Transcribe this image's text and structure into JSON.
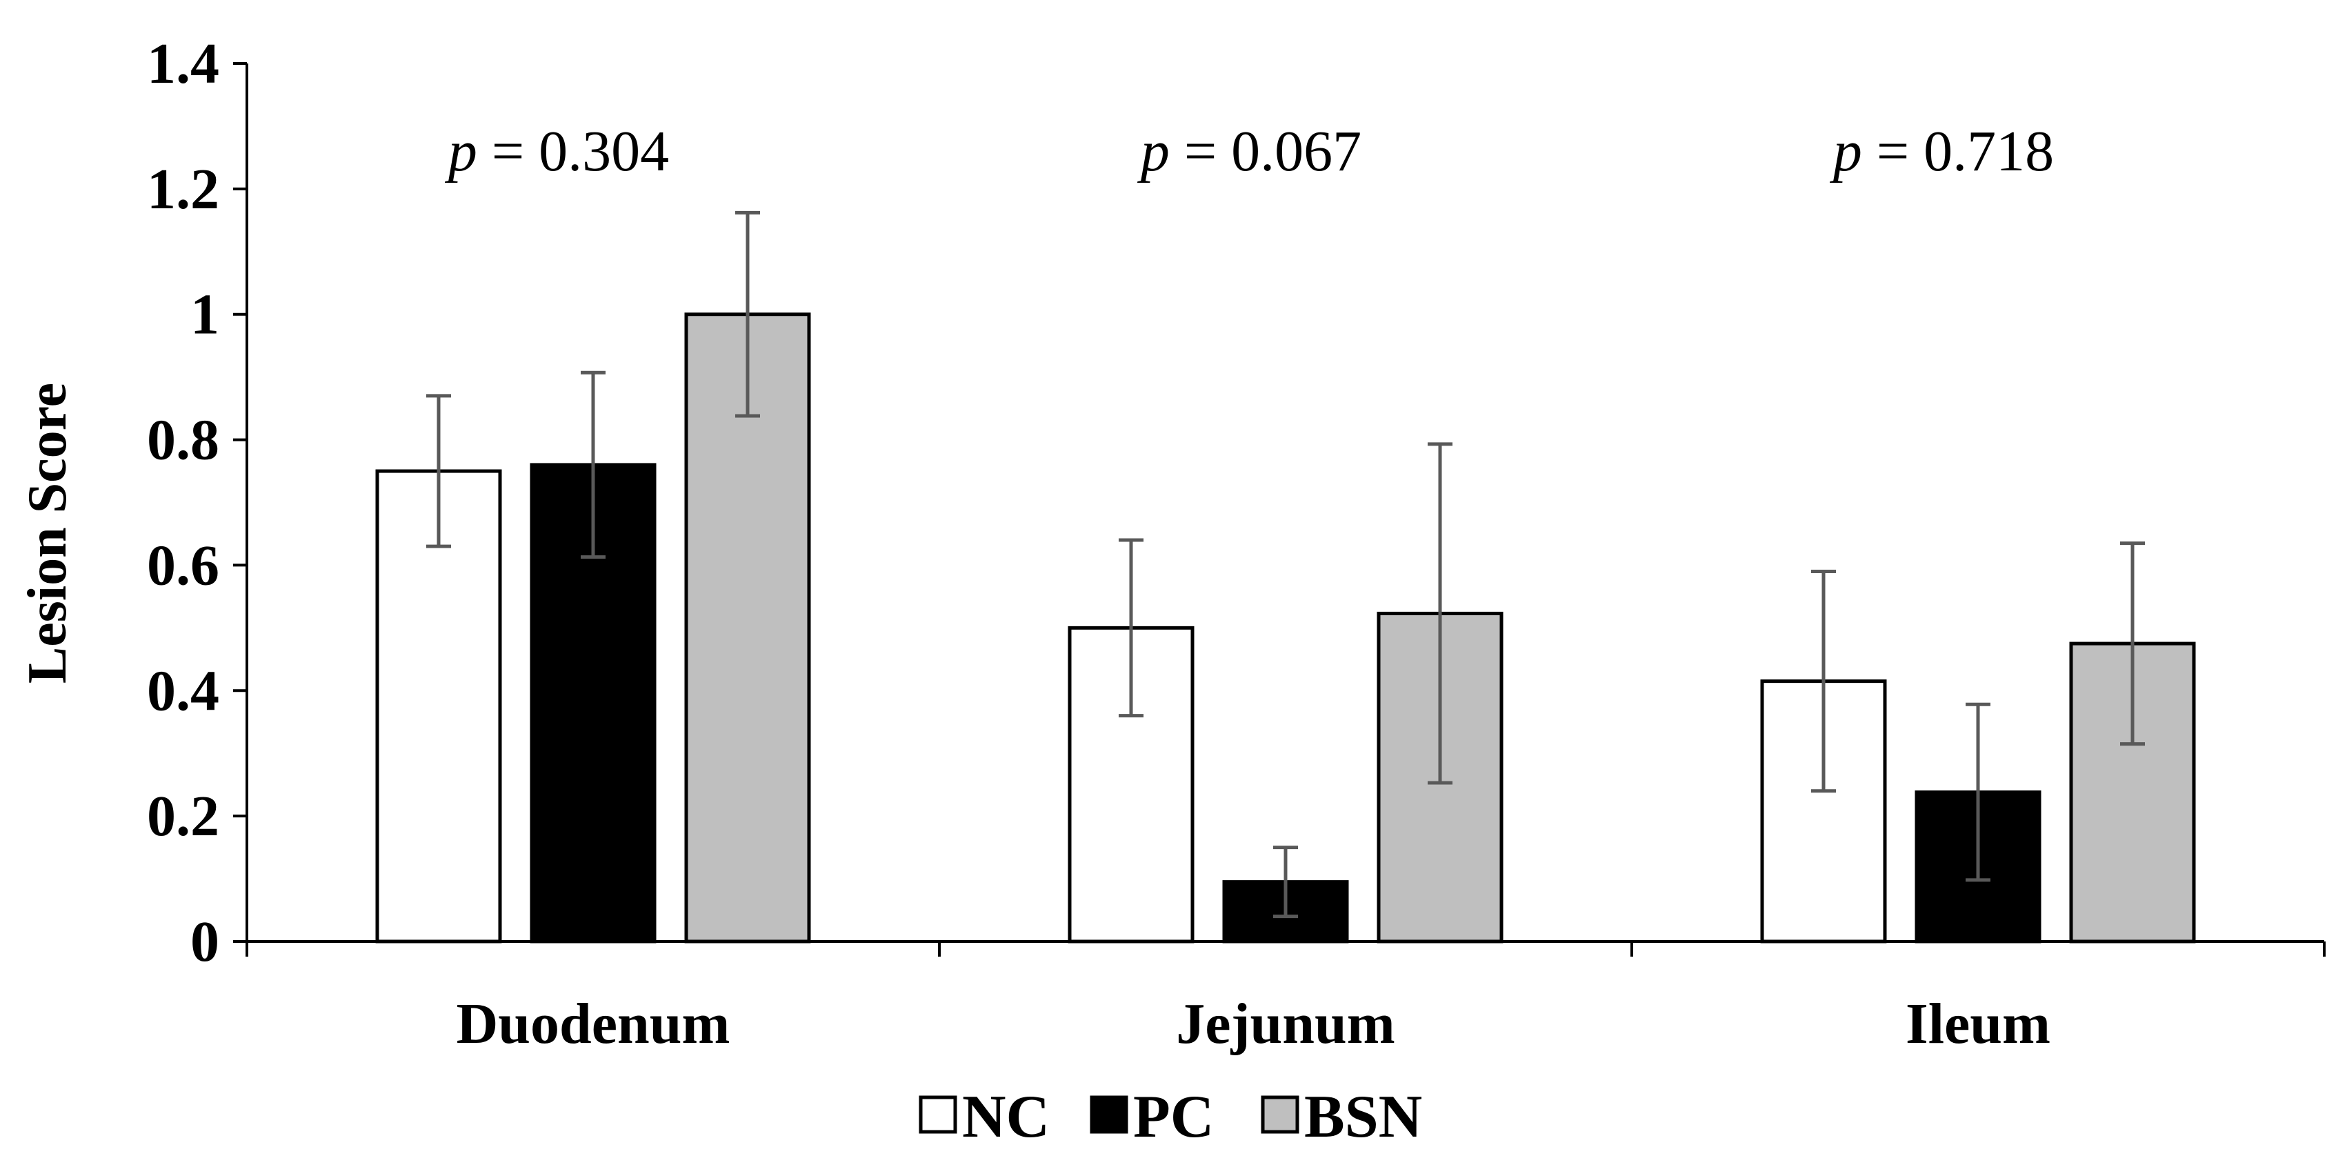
{
  "chart_data": {
    "type": "bar",
    "ylabel": "Lesion Score",
    "xlabel": "",
    "ylim": [
      0,
      1.4
    ],
    "yticks": [
      "0",
      "0.2",
      "0.4",
      "0.6",
      "0.8",
      "1",
      "1.2",
      "1.4"
    ],
    "grid": false,
    "legend_position": "bottom-center",
    "categories": [
      "Duodenum",
      "Jejunum",
      "Ileum"
    ],
    "annotations": [
      {
        "prefix": "p",
        "text": " = 0.304"
      },
      {
        "prefix": "p",
        "text": " = 0.067"
      },
      {
        "prefix": "p",
        "text": " = 0.718"
      }
    ],
    "series": [
      {
        "name": "NC",
        "color": "#ffffff",
        "values": [
          0.75,
          0.5,
          0.415
        ],
        "errors": [
          0.12,
          0.14,
          0.175
        ]
      },
      {
        "name": "PC",
        "color": "#000000",
        "values": [
          0.76,
          0.095,
          0.238
        ],
        "errors": [
          0.147,
          0.055,
          0.14
        ]
      },
      {
        "name": "BSN",
        "color": "#bfbfbf",
        "values": [
          1.0,
          0.523,
          0.475
        ],
        "errors": [
          0.162,
          0.27,
          0.16
        ]
      }
    ],
    "error_bar_color": "#595959"
  }
}
